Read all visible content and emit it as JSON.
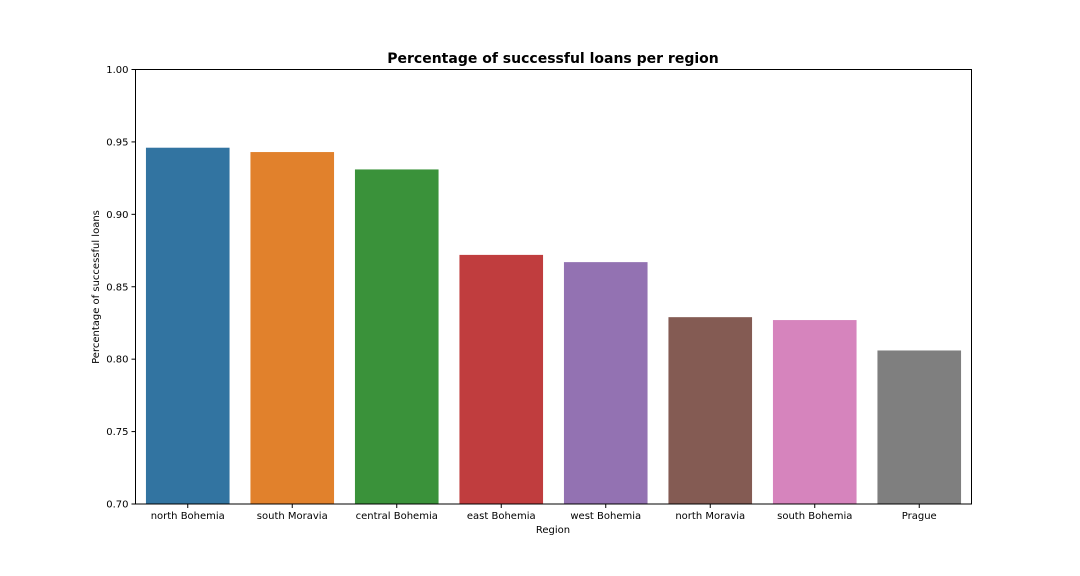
{
  "chart_data": {
    "type": "bar",
    "title": "Percentage of successful loans per region",
    "xlabel": "Region",
    "ylabel": "Percentage of successful loans",
    "ylim": [
      0.7,
      1.0
    ],
    "yticks": [
      "0.70",
      "0.75",
      "0.80",
      "0.85",
      "0.90",
      "0.95",
      "1.00"
    ],
    "grid": false,
    "categories": [
      "north Bohemia",
      "south Moravia",
      "central Bohemia",
      "east Bohemia",
      "west Bohemia",
      "north Moravia",
      "south Bohemia",
      "Prague"
    ],
    "values": [
      0.946,
      0.943,
      0.931,
      0.872,
      0.867,
      0.829,
      0.827,
      0.806
    ],
    "colors": [
      "#3274a1",
      "#e1812c",
      "#3a923a",
      "#c03d3e",
      "#9372b2",
      "#845b53",
      "#d684bd",
      "#7f7f7f"
    ]
  }
}
